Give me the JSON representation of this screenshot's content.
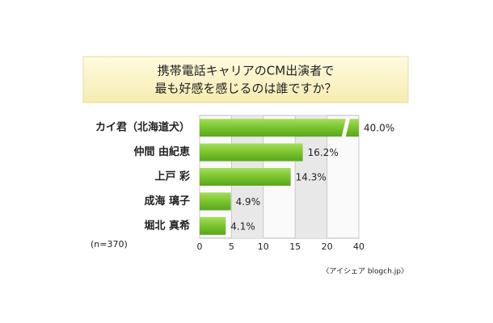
{
  "chart_data": {
    "type": "bar",
    "orientation": "horizontal",
    "title": [
      "携帯電話キャリアのCM出演者で",
      "最も好感を感じるのは誰ですか？"
    ],
    "categories": [
      "カイ君（北海道犬）",
      "仲間 由紀恵",
      "上戸 彩",
      "成海 璃子",
      "堀北 真希"
    ],
    "values": [
      40.0,
      16.2,
      14.3,
      4.9,
      4.1
    ],
    "value_labels": [
      "40.0%",
      "16.2%",
      "14.3%",
      "4.9%",
      "4.1%"
    ],
    "color": "#79c42e",
    "xlim": [
      0,
      40
    ],
    "xticks": [
      0,
      5,
      10,
      15,
      20,
      40
    ],
    "grid": true,
    "note": "(n=370)",
    "source": "〈アイシェア blogch.jp〉"
  }
}
